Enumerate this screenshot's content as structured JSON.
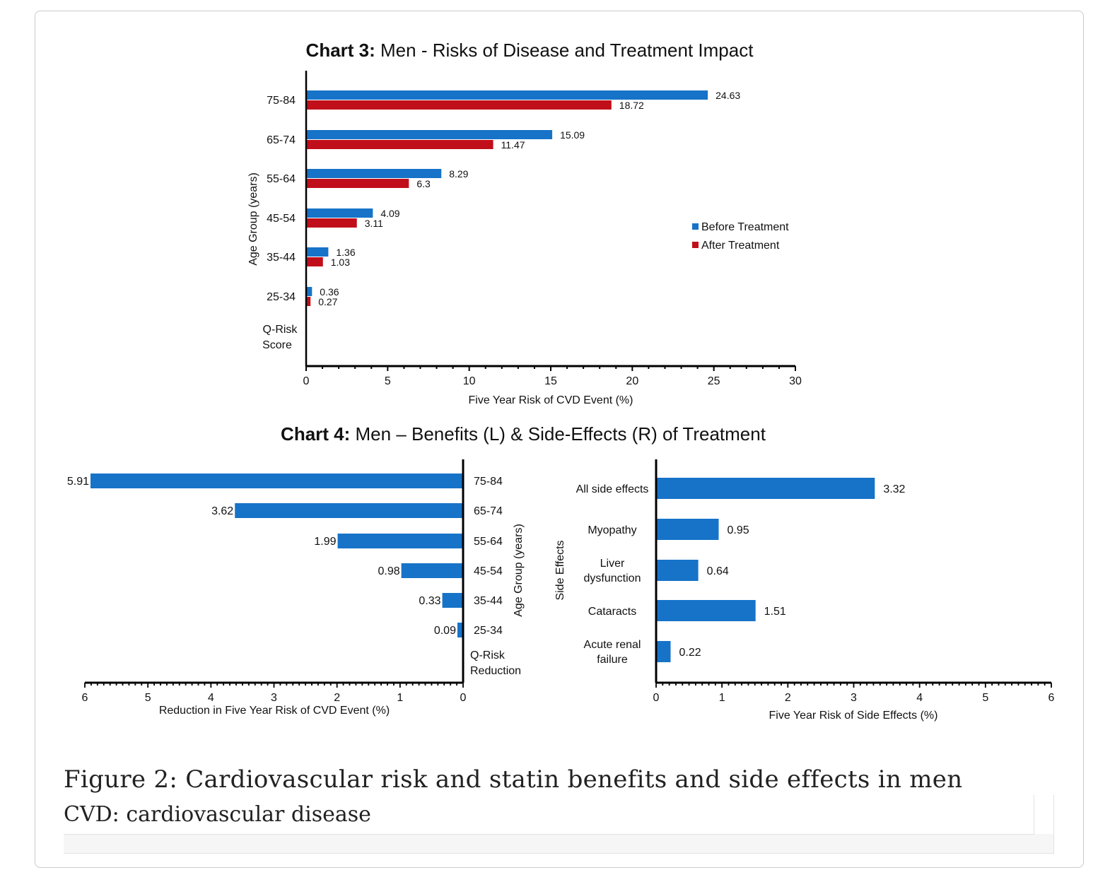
{
  "figure": {
    "caption_title": "Figure 2: Cardiovascular risk and statin benefits and side effects in men",
    "caption_sub": "CVD: cardiovascular disease"
  },
  "colors": {
    "blue": "#1673c8",
    "red": "#c00f1a",
    "axis": "#000000"
  },
  "chart3": {
    "title_bold": "Chart 3:",
    "title_rest": " Men - Risks of Disease and Treatment Impact"
  },
  "chart4": {
    "title_bold": "Chart 4:",
    "title_rest": " Men – Benefits (L) & Side-Effects (R) of Treatment"
  },
  "chart_data": [
    {
      "type": "bar",
      "orientation": "horizontal",
      "title": "Chart 3: Men - Risks of Disease and Treatment Impact",
      "categories": [
        "75-84",
        "65-74",
        "55-64",
        "45-54",
        "35-44",
        "25-34"
      ],
      "category_footer": "Q-Risk Score",
      "series": [
        {
          "name": "Before Treatment",
          "values": [
            24.63,
            15.09,
            8.29,
            4.09,
            1.36,
            0.36
          ]
        },
        {
          "name": "After Treatment",
          "values": [
            18.72,
            11.47,
            6.3,
            3.11,
            1.03,
            0.27
          ]
        }
      ],
      "xlabel": "Five Year Risk of CVD Event (%)",
      "ylabel": "Age Group (years)",
      "xlim": [
        0,
        30
      ],
      "xticks": [
        0,
        5,
        10,
        15,
        20,
        25,
        30
      ],
      "legend": "right"
    },
    {
      "type": "bar",
      "orientation": "horizontal-reversed",
      "title": "Chart 4 (L): Benefits",
      "categories": [
        "75-84",
        "65-74",
        "55-64",
        "45-54",
        "35-44",
        "25-34"
      ],
      "category_footer": "Q-Risk Reduction",
      "values": [
        5.91,
        3.62,
        1.99,
        0.98,
        0.33,
        0.09
      ],
      "xlabel": "Reduction in Five Year Risk of CVD Event (%)",
      "ylabel": "Age Group (years)",
      "xlim": [
        6,
        0
      ],
      "xticks": [
        6,
        5,
        4,
        3,
        2,
        1,
        0
      ]
    },
    {
      "type": "bar",
      "orientation": "horizontal",
      "title": "Chart 4 (R): Side-Effects",
      "categories": [
        "All side effects",
        "Myopathy",
        "Liver dysfunction",
        "Cataracts",
        "Acute renal failure"
      ],
      "values": [
        3.32,
        0.95,
        0.64,
        1.51,
        0.22
      ],
      "xlabel": "Five Year Risk of Side Effects (%)",
      "ylabel": "Side Effects",
      "xlim": [
        0,
        6
      ],
      "xticks": [
        0,
        1,
        2,
        3,
        4,
        5,
        6
      ]
    }
  ]
}
